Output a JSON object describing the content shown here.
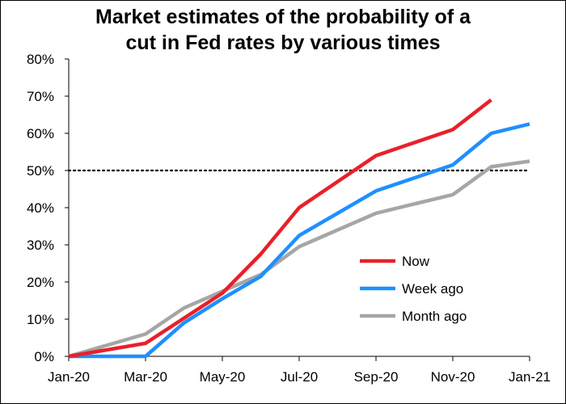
{
  "chart_data": {
    "type": "line",
    "title_lines": [
      "Market estimates of the probability of a",
      "cut in Fed rates by various times"
    ],
    "xlabel": "",
    "ylabel": "",
    "x_tick_labels": [
      "Jan-20",
      "Mar-20",
      "May-20",
      "Jul-20",
      "Sep-20",
      "Nov-20",
      "Jan-21"
    ],
    "y_tick_labels": [
      "0%",
      "10%",
      "20%",
      "30%",
      "40%",
      "50%",
      "60%",
      "70%",
      "80%"
    ],
    "xlim": [
      0,
      12
    ],
    "ylim": [
      0,
      80
    ],
    "grid": false,
    "reference_line": {
      "y": 50,
      "style": "dotted",
      "color": "#000000"
    },
    "legend_position": "center-right",
    "series": [
      {
        "name": "Now",
        "color": "#e8202a",
        "x": [
          0,
          2,
          4,
          5,
          6,
          8,
          10,
          11
        ],
        "y": [
          0,
          3.5,
          17,
          27.5,
          40,
          54,
          61,
          69
        ]
      },
      {
        "name": "Week ago",
        "color": "#1f8fff",
        "x": [
          0,
          2,
          3,
          4,
          5,
          6,
          8,
          10,
          11,
          12
        ],
        "y": [
          0,
          0,
          9,
          15.5,
          21.5,
          32.5,
          44.5,
          51.5,
          60,
          62.5
        ]
      },
      {
        "name": "Month ago",
        "color": "#a6a6a6",
        "x": [
          0,
          2,
          3,
          4,
          5,
          6,
          8,
          10,
          11,
          12
        ],
        "y": [
          0,
          6,
          13,
          17.5,
          22,
          29.5,
          38.5,
          43.5,
          51,
          52.5
        ]
      }
    ]
  }
}
